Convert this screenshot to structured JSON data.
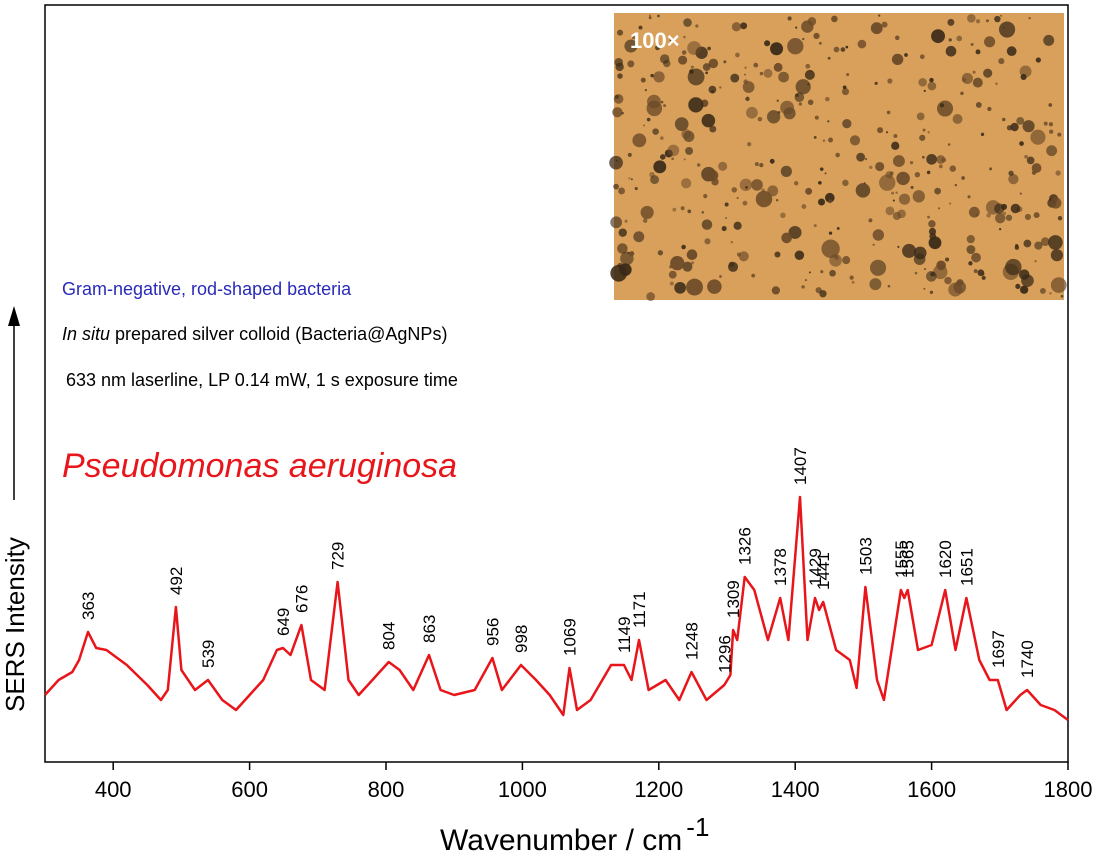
{
  "chart_data": {
    "type": "line",
    "title": "Pseudomonas aeruginosa",
    "notes": [
      "Gram-negative, rod-shaped bacteria",
      "In situ",
      "prepared silver colloid (Bacteria@AgNPs)",
      "633 nm laserline, LP 0.14 mW, 1 s exposure time"
    ],
    "inset_label": "100×",
    "x_label": "Wavenumber / cm",
    "x_label_sup": "-1",
    "y_label": "SERS Intensity",
    "xlim": [
      300,
      1800
    ],
    "xticks": [
      400,
      600,
      800,
      1000,
      1200,
      1400,
      1600,
      1800
    ],
    "ylim": [
      0,
      757
    ],
    "color": "#e8161b",
    "x": [
      300,
      320,
      340,
      350,
      363,
      375,
      390,
      400,
      420,
      450,
      470,
      480,
      492,
      500,
      520,
      539,
      560,
      580,
      600,
      620,
      640,
      649,
      660,
      676,
      690,
      710,
      729,
      745,
      760,
      780,
      804,
      820,
      840,
      863,
      880,
      900,
      930,
      956,
      970,
      998,
      1020,
      1040,
      1060,
      1069,
      1080,
      1100,
      1130,
      1149,
      1160,
      1171,
      1185,
      1210,
      1230,
      1248,
      1270,
      1296,
      1305,
      1309,
      1315,
      1326,
      1340,
      1360,
      1378,
      1390,
      1407,
      1418,
      1429,
      1435,
      1441,
      1460,
      1480,
      1490,
      1503,
      1520,
      1530,
      1555,
      1560,
      1565,
      1580,
      1600,
      1620,
      1635,
      1651,
      1670,
      1685,
      1697,
      1710,
      1730,
      1740,
      1760,
      1780,
      1800
    ],
    "values": [
      67,
      82,
      90,
      102,
      130,
      114,
      112,
      107,
      97,
      77,
      62,
      72,
      155,
      92,
      72,
      82,
      62,
      52,
      67,
      82,
      112,
      114,
      107,
      137,
      82,
      72,
      180,
      82,
      67,
      82,
      100,
      92,
      72,
      107,
      72,
      67,
      72,
      104,
      72,
      97,
      82,
      67,
      47,
      94,
      52,
      62,
      97,
      97,
      82,
      122,
      72,
      82,
      62,
      90,
      62,
      77,
      87,
      132,
      122,
      185,
      172,
      122,
      164,
      122,
      265,
      122,
      164,
      152,
      160,
      112,
      102,
      74,
      175,
      82,
      62,
      172,
      164,
      172,
      112,
      117,
      172,
      112,
      164,
      102,
      82,
      82,
      52,
      67,
      72,
      57,
      52,
      42
    ],
    "peaks": [
      363,
      492,
      539,
      649,
      676,
      729,
      804,
      863,
      956,
      998,
      1069,
      1149,
      1171,
      1248,
      1296,
      1309,
      1326,
      1378,
      1407,
      1429,
      1441,
      1503,
      1555,
      1565,
      1620,
      1651,
      1697,
      1740
    ]
  }
}
